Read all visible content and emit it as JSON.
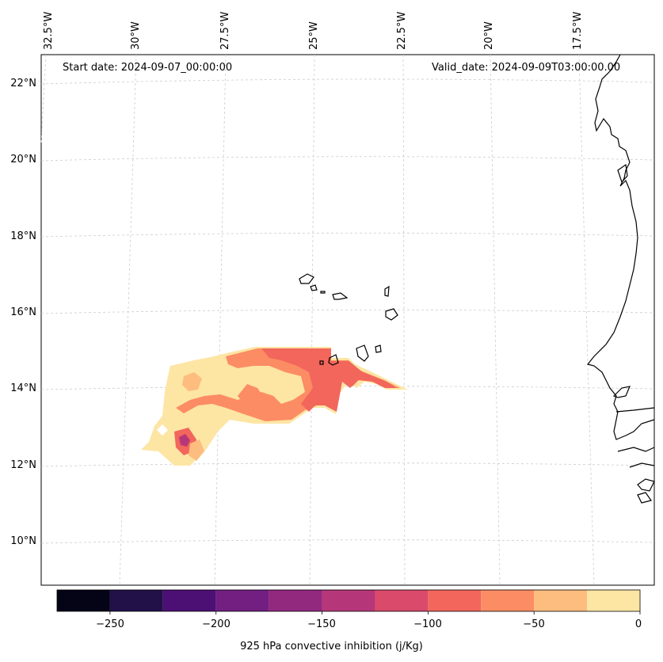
{
  "map": {
    "start_date": "Start date: 2024-09-07_00:00:00",
    "valid_date": "Valid_date: 2024-09-09T03:00:00.00",
    "lon_labels": [
      "32.5°W",
      "30°W",
      "27.5°W",
      "25°W",
      "22.5°W",
      "20°W",
      "17.5°W"
    ],
    "lat_labels": [
      "22°N",
      "20°N",
      "18°N",
      "16°N",
      "14°N",
      "12°N",
      "10°N"
    ]
  },
  "colorbar": {
    "label": "925 hPa convective inhibition (j/Kg)",
    "ticks": [
      "−250",
      "−200",
      "−150",
      "−100",
      "−50",
      "0"
    ],
    "min": -275,
    "max": 0,
    "step": 25,
    "colors": [
      "#050417",
      "#221049",
      "#4c0f74",
      "#721f81",
      "#93287f",
      "#b63779",
      "#d94a6b",
      "#f2665c",
      "#fc8c63",
      "#fdbd7e",
      "#fde5a4"
    ]
  }
}
